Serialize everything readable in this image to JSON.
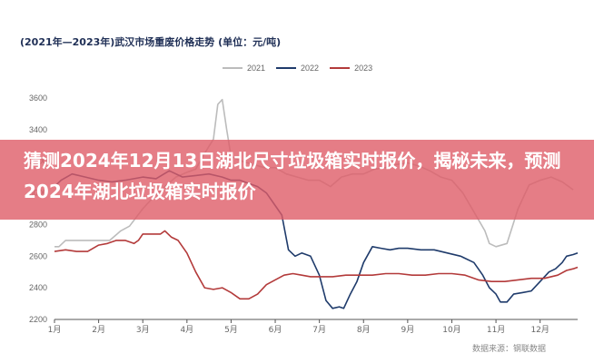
{
  "headline": "猜测2024年12月13日湖北尺寸垃圾箱实时报价，揭秘未来，预测2024年湖北垃圾箱实时报价",
  "watermark": "数据来源：钢联数据",
  "chart_data": {
    "type": "line",
    "title": "(2021年—2023年)武汉市场重废价格走势 (单位：元/吨)",
    "xlabel": "",
    "ylabel": "",
    "ylim": [
      2200,
      3600
    ],
    "yticks": [
      2200,
      2400,
      2600,
      2800,
      3000,
      3200,
      3400,
      3600
    ],
    "x_categories": [
      "1月",
      "2月",
      "3月",
      "4月",
      "5月",
      "6月",
      "7月",
      "8月",
      "9月",
      "10月",
      "11月",
      "12月"
    ],
    "grid": false,
    "legend_position": "top-center",
    "series": [
      {
        "name": "2021",
        "color": "#bcbcbc",
        "points": [
          [
            0.0,
            2660
          ],
          [
            0.1,
            2660
          ],
          [
            0.25,
            2700
          ],
          [
            0.5,
            2700
          ],
          [
            0.75,
            2700
          ],
          [
            1.0,
            2700
          ],
          [
            1.25,
            2700
          ],
          [
            1.5,
            2760
          ],
          [
            1.7,
            2790
          ],
          [
            2.0,
            2900
          ],
          [
            2.2,
            2960
          ],
          [
            2.5,
            3040
          ],
          [
            2.75,
            3100
          ],
          [
            3.0,
            3130
          ],
          [
            3.2,
            3150
          ],
          [
            3.4,
            3250
          ],
          [
            3.6,
            3340
          ],
          [
            3.7,
            3560
          ],
          [
            3.8,
            3590
          ],
          [
            3.9,
            3400
          ],
          [
            4.0,
            3230
          ],
          [
            4.25,
            3200
          ],
          [
            4.5,
            3180
          ],
          [
            4.75,
            3160
          ],
          [
            5.0,
            3160
          ],
          [
            5.25,
            3120
          ],
          [
            5.5,
            3100
          ],
          [
            5.75,
            3080
          ],
          [
            6.0,
            3080
          ],
          [
            6.25,
            3040
          ],
          [
            6.5,
            3100
          ],
          [
            6.75,
            3120
          ],
          [
            7.0,
            3120
          ],
          [
            7.25,
            3150
          ],
          [
            7.5,
            3160
          ],
          [
            7.75,
            3180
          ],
          [
            8.0,
            3190
          ],
          [
            8.25,
            3170
          ],
          [
            8.5,
            3140
          ],
          [
            8.75,
            3100
          ],
          [
            9.0,
            3080
          ],
          [
            9.25,
            3000
          ],
          [
            9.5,
            2880
          ],
          [
            9.75,
            2760
          ],
          [
            9.85,
            2680
          ],
          [
            10.0,
            2660
          ],
          [
            10.25,
            2680
          ],
          [
            10.5,
            2900
          ],
          [
            10.75,
            3050
          ],
          [
            11.0,
            3080
          ],
          [
            11.25,
            3100
          ],
          [
            11.5,
            3070
          ],
          [
            11.75,
            3020
          ]
        ]
      },
      {
        "name": "2022",
        "color": "#1f3b6b",
        "points": [
          [
            0.0,
            3040
          ],
          [
            0.15,
            3080
          ],
          [
            0.4,
            3120
          ],
          [
            0.7,
            3100
          ],
          [
            1.0,
            3080
          ],
          [
            1.3,
            3070
          ],
          [
            1.6,
            3080
          ],
          [
            2.0,
            3100
          ],
          [
            2.3,
            3090
          ],
          [
            2.6,
            3140
          ],
          [
            2.9,
            3100
          ],
          [
            3.2,
            3110
          ],
          [
            3.5,
            3120
          ],
          [
            3.8,
            3100
          ],
          [
            4.0,
            3080
          ],
          [
            4.2,
            3080
          ],
          [
            4.4,
            3060
          ],
          [
            4.6,
            3040
          ],
          [
            4.8,
            3000
          ],
          [
            5.0,
            2920
          ],
          [
            5.15,
            2860
          ],
          [
            5.3,
            2640
          ],
          [
            5.45,
            2600
          ],
          [
            5.6,
            2620
          ],
          [
            5.8,
            2600
          ],
          [
            6.0,
            2480
          ],
          [
            6.15,
            2320
          ],
          [
            6.3,
            2270
          ],
          [
            6.45,
            2280
          ],
          [
            6.55,
            2270
          ],
          [
            6.7,
            2360
          ],
          [
            6.85,
            2440
          ],
          [
            7.0,
            2560
          ],
          [
            7.2,
            2660
          ],
          [
            7.4,
            2650
          ],
          [
            7.6,
            2640
          ],
          [
            7.8,
            2650
          ],
          [
            8.0,
            2650
          ],
          [
            8.3,
            2640
          ],
          [
            8.6,
            2640
          ],
          [
            8.9,
            2620
          ],
          [
            9.2,
            2600
          ],
          [
            9.5,
            2560
          ],
          [
            9.7,
            2480
          ],
          [
            9.85,
            2400
          ],
          [
            10.0,
            2360
          ],
          [
            10.1,
            2310
          ],
          [
            10.25,
            2310
          ],
          [
            10.4,
            2360
          ],
          [
            10.6,
            2370
          ],
          [
            10.8,
            2380
          ],
          [
            11.0,
            2440
          ],
          [
            11.2,
            2500
          ],
          [
            11.35,
            2520
          ],
          [
            11.5,
            2560
          ],
          [
            11.6,
            2600
          ],
          [
            11.75,
            2610
          ],
          [
            11.85,
            2620
          ]
        ]
      },
      {
        "name": "2023",
        "color": "#b33a3a",
        "points": [
          [
            0.0,
            2630
          ],
          [
            0.25,
            2640
          ],
          [
            0.5,
            2630
          ],
          [
            0.75,
            2630
          ],
          [
            1.0,
            2670
          ],
          [
            1.2,
            2680
          ],
          [
            1.4,
            2700
          ],
          [
            1.6,
            2700
          ],
          [
            1.8,
            2680
          ],
          [
            1.9,
            2700
          ],
          [
            2.0,
            2740
          ],
          [
            2.2,
            2740
          ],
          [
            2.4,
            2740
          ],
          [
            2.5,
            2760
          ],
          [
            2.65,
            2720
          ],
          [
            2.8,
            2700
          ],
          [
            3.0,
            2620
          ],
          [
            3.2,
            2500
          ],
          [
            3.4,
            2400
          ],
          [
            3.6,
            2390
          ],
          [
            3.8,
            2400
          ],
          [
            4.0,
            2370
          ],
          [
            4.2,
            2330
          ],
          [
            4.4,
            2330
          ],
          [
            4.6,
            2360
          ],
          [
            4.8,
            2420
          ],
          [
            5.0,
            2450
          ],
          [
            5.2,
            2480
          ],
          [
            5.4,
            2490
          ],
          [
            5.6,
            2480
          ],
          [
            5.8,
            2470
          ],
          [
            6.0,
            2470
          ],
          [
            6.3,
            2470
          ],
          [
            6.6,
            2480
          ],
          [
            6.9,
            2480
          ],
          [
            7.2,
            2480
          ],
          [
            7.5,
            2490
          ],
          [
            7.8,
            2490
          ],
          [
            8.1,
            2480
          ],
          [
            8.4,
            2480
          ],
          [
            8.7,
            2490
          ],
          [
            9.0,
            2490
          ],
          [
            9.3,
            2480
          ],
          [
            9.6,
            2450
          ],
          [
            9.9,
            2440
          ],
          [
            10.2,
            2440
          ],
          [
            10.5,
            2450
          ],
          [
            10.8,
            2460
          ],
          [
            11.1,
            2460
          ],
          [
            11.4,
            2480
          ],
          [
            11.6,
            2510
          ],
          [
            11.75,
            2520
          ],
          [
            11.85,
            2530
          ]
        ]
      }
    ]
  }
}
